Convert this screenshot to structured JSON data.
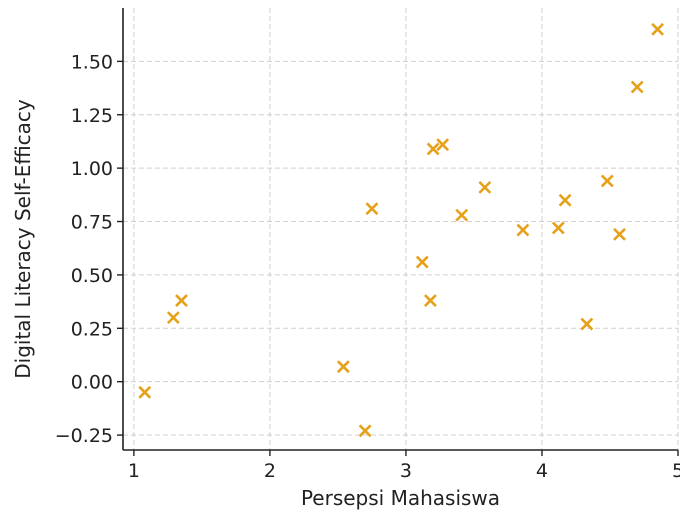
{
  "chart_data": {
    "type": "scatter",
    "title": "",
    "xlabel": "Persepsi Mahasiswa",
    "ylabel": "Digital Literacy Self-Efficacy",
    "xlim": [
      0.92,
      5.0
    ],
    "ylim": [
      -0.32,
      1.75
    ],
    "xticks": [
      1,
      2,
      3,
      4,
      5
    ],
    "xtick_labels": [
      "1",
      "2",
      "3",
      "4",
      "5"
    ],
    "yticks": [
      -0.25,
      0.0,
      0.25,
      0.5,
      0.75,
      1.0,
      1.25,
      1.5
    ],
    "ytick_labels": [
      "−0.25",
      "0.00",
      "0.25",
      "0.50",
      "0.75",
      "1.00",
      "1.25",
      "1.50"
    ],
    "grid": true,
    "marker": "x",
    "marker_color": "#E6A11A",
    "series": [
      {
        "points": [
          {
            "x": 1.08,
            "y": -0.05
          },
          {
            "x": 1.29,
            "y": 0.3
          },
          {
            "x": 1.35,
            "y": 0.38
          },
          {
            "x": 2.54,
            "y": 0.07
          },
          {
            "x": 2.7,
            "y": -0.23
          },
          {
            "x": 2.75,
            "y": 0.81
          },
          {
            "x": 3.12,
            "y": 0.56
          },
          {
            "x": 3.18,
            "y": 0.38
          },
          {
            "x": 3.2,
            "y": 1.09
          },
          {
            "x": 3.27,
            "y": 1.11
          },
          {
            "x": 3.41,
            "y": 0.78
          },
          {
            "x": 3.58,
            "y": 0.91
          },
          {
            "x": 3.86,
            "y": 0.71
          },
          {
            "x": 4.12,
            "y": 0.72
          },
          {
            "x": 4.17,
            "y": 0.85
          },
          {
            "x": 4.33,
            "y": 0.27
          },
          {
            "x": 4.48,
            "y": 0.94
          },
          {
            "x": 4.57,
            "y": 0.69
          },
          {
            "x": 4.7,
            "y": 1.38
          },
          {
            "x": 4.85,
            "y": 1.65
          }
        ]
      }
    ]
  }
}
